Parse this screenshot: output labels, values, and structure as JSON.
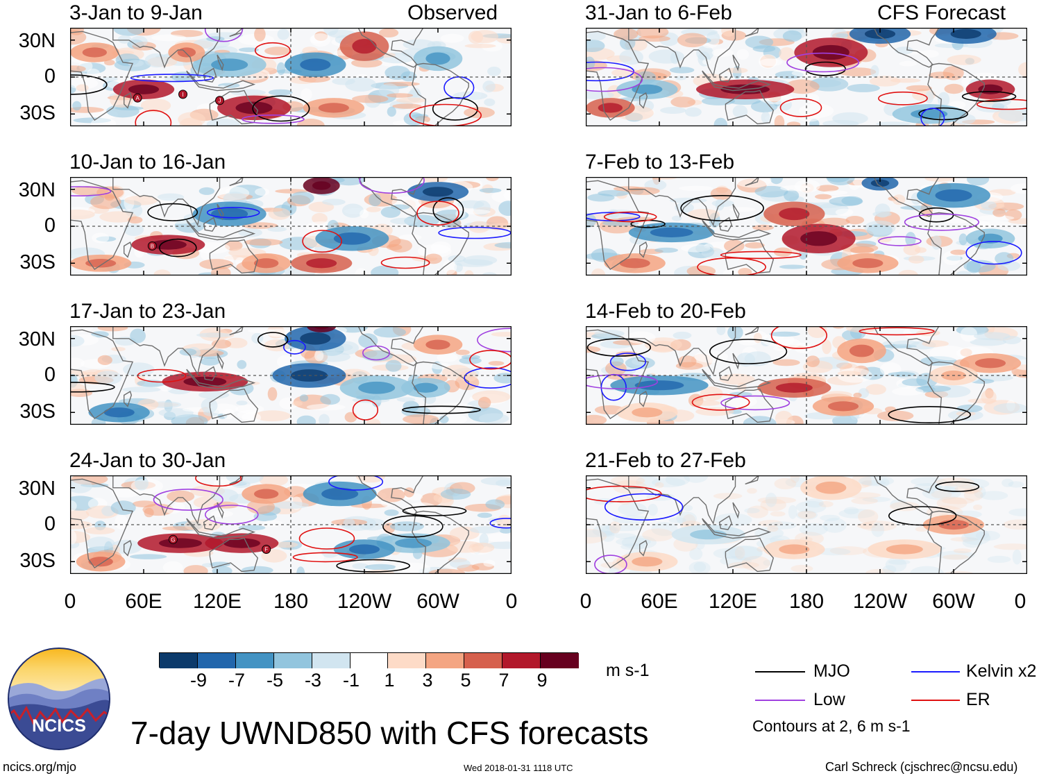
{
  "observed_label": "Observed",
  "forecast_label": "CFS Forecast",
  "panels_left": [
    {
      "title": "3-Jan to 9-Jan"
    },
    {
      "title": "10-Jan to 16-Jan"
    },
    {
      "title": "17-Jan to 23-Jan"
    },
    {
      "title": "24-Jan to 30-Jan"
    }
  ],
  "panels_right": [
    {
      "title": "31-Jan to 6-Feb"
    },
    {
      "title": "7-Feb to 13-Feb"
    },
    {
      "title": "14-Feb to 20-Feb"
    },
    {
      "title": "21-Feb to 27-Feb"
    }
  ],
  "lat_labels": [
    "30N",
    "0",
    "30S"
  ],
  "lon_labels": [
    "0",
    "60E",
    "120E",
    "180",
    "120W",
    "60W",
    "0"
  ],
  "colorbar": {
    "units": "m s-1",
    "tick_labels": [
      "-9",
      "-7",
      "-5",
      "-3",
      "-1",
      "1",
      "3",
      "5",
      "7",
      "9"
    ],
    "colors": [
      "#0b3a6b",
      "#2166ac",
      "#4393c3",
      "#92c5de",
      "#d1e5f0",
      "#ffffff",
      "#fddbc7",
      "#f4a582",
      "#d6604d",
      "#b2182b",
      "#67001f"
    ]
  },
  "legend": {
    "items": [
      {
        "label": "MJO",
        "color": "#000000"
      },
      {
        "label": "Kelvin x2",
        "color": "#1a1aff"
      },
      {
        "label": "Low",
        "color": "#a040e0"
      },
      {
        "label": "ER",
        "color": "#e01010"
      }
    ],
    "note": "Contours at 2, 6 m s-1"
  },
  "main_title": "7-day UWND850 with CFS forecasts",
  "logo_text": "NCICS",
  "footer": {
    "url": "ncics.org/mjo",
    "timestamp": "Wed 2018-01-31 1118 UTC",
    "author": "Carl Schreck (cjschrec@ncsu.edu)"
  },
  "storm_markers": [
    "A",
    "I",
    "J",
    "B",
    "G",
    "F"
  ]
}
